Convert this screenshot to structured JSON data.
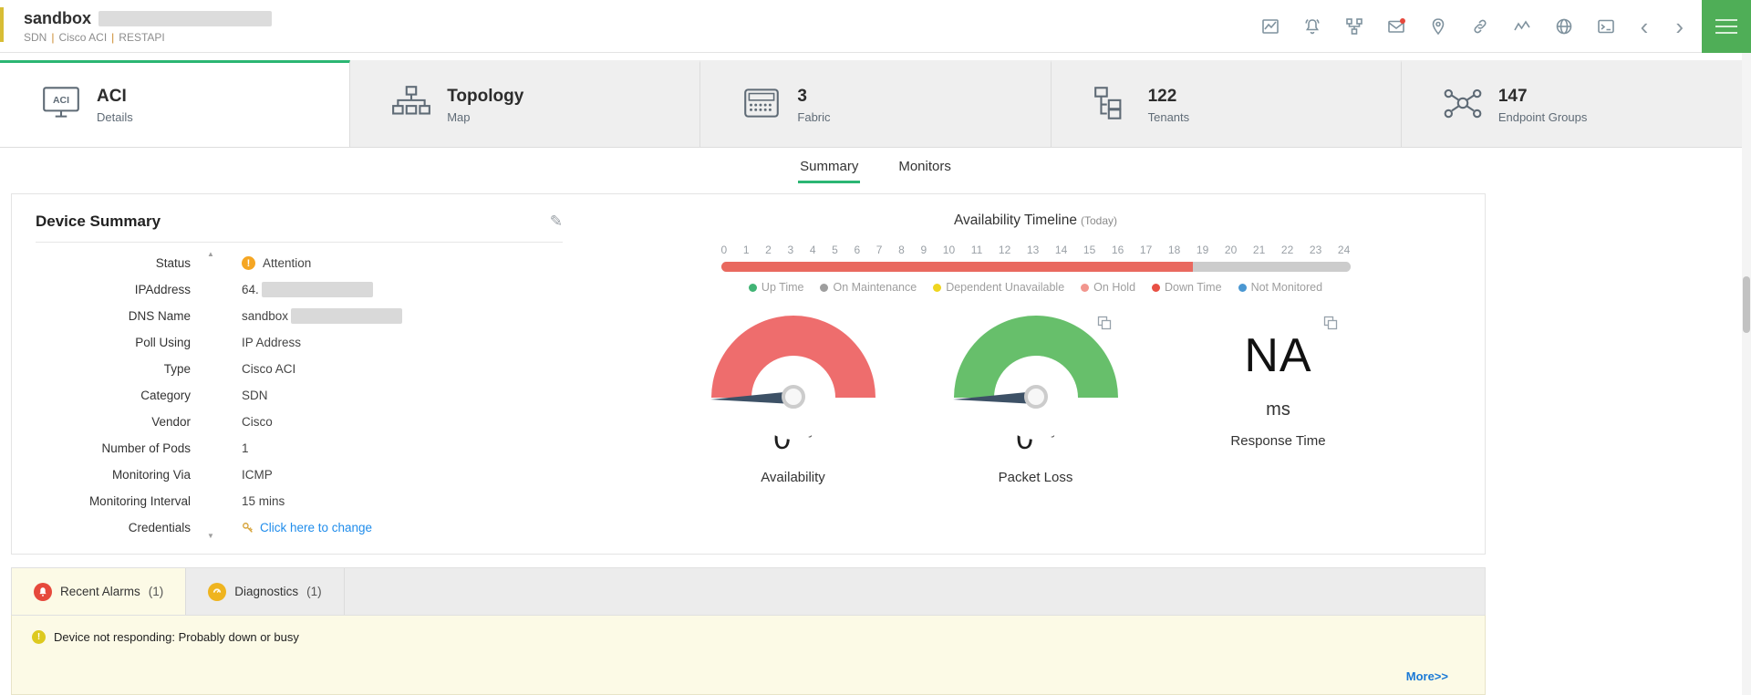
{
  "theme": {
    "accent_green": "#2bb673",
    "status_orange": "#f5a623",
    "link_blue": "#1f8ceb"
  },
  "header": {
    "title": "sandbox",
    "breadcrumb": {
      "parts": [
        "SDN",
        "Cisco ACI",
        "RESTAPI"
      ],
      "separator": "|"
    },
    "icons": [
      "image-chart-icon",
      "alarm-bell-icon",
      "workflow-icon",
      "mail-icon",
      "location-pin-icon",
      "link-icon",
      "sparkline-icon",
      "globe-icon",
      "terminal-icon",
      "chevron-left-icon",
      "chevron-right-icon",
      "menu-icon"
    ]
  },
  "nav_cards": {
    "aci": {
      "title": "ACI",
      "subtitle": "Details"
    },
    "topology": {
      "title": "Topology",
      "subtitle": "Map"
    },
    "fabric": {
      "value": "3",
      "label": "Fabric"
    },
    "tenants": {
      "value": "122",
      "label": "Tenants"
    },
    "endpoint_groups": {
      "value": "147",
      "label": "Endpoint Groups"
    }
  },
  "sub_tabs": {
    "summary": "Summary",
    "monitors": "Monitors"
  },
  "device_summary": {
    "title": "Device Summary",
    "fields": [
      {
        "label": "Status",
        "value": "Attention",
        "kind": "status"
      },
      {
        "label": "IPAddress",
        "value": "64.",
        "kind": "redacted"
      },
      {
        "label": "DNS Name",
        "value": "sandbox",
        "kind": "redacted"
      },
      {
        "label": "Poll Using",
        "value": "IP Address",
        "kind": "text"
      },
      {
        "label": "Type",
        "value": "Cisco ACI",
        "kind": "text"
      },
      {
        "label": "Category",
        "value": "SDN",
        "kind": "text"
      },
      {
        "label": "Vendor",
        "value": "Cisco",
        "kind": "text"
      },
      {
        "label": "Number of Pods",
        "value": "1",
        "kind": "text"
      },
      {
        "label": "Monitoring Via",
        "value": "ICMP",
        "kind": "text"
      },
      {
        "label": "Monitoring Interval",
        "value": "15 mins",
        "kind": "text"
      },
      {
        "label": "Credentials",
        "value": "Click here to change",
        "kind": "link"
      }
    ]
  },
  "availability": {
    "title": "Availability Timeline",
    "subtitle": "(Today)",
    "ticks": [
      "0",
      "1",
      "2",
      "3",
      "4",
      "5",
      "6",
      "7",
      "8",
      "9",
      "10",
      "11",
      "12",
      "13",
      "14",
      "15",
      "16",
      "17",
      "18",
      "19",
      "20",
      "21",
      "22",
      "23",
      "24"
    ],
    "segments": [
      {
        "name": "down-time",
        "color": "#e9695f",
        "percent": 75
      },
      {
        "name": "not-monitored",
        "color": "#cccccc",
        "percent": 25
      }
    ],
    "legend": [
      {
        "label": "Up Time",
        "color": "#41b475"
      },
      {
        "label": "On Maintenance",
        "color": "#9e9e9e"
      },
      {
        "label": "Dependent Unavailable",
        "color": "#efd51f"
      },
      {
        "label": "On Hold",
        "color": "#f2968e"
      },
      {
        "label": "Down Time",
        "color": "#e85044"
      },
      {
        "label": "Not Monitored",
        "color": "#4a97d2"
      }
    ]
  },
  "gauges": {
    "availability": {
      "value": "0",
      "unit": "%",
      "label": "Availability",
      "color": "#ee6d6d"
    },
    "packet_loss": {
      "value": "0",
      "unit": "%",
      "label": "Packet Loss",
      "color": "#67bf6b"
    },
    "response_time": {
      "value": "NA",
      "unit": "ms",
      "label": "Response Time"
    }
  },
  "alarms_section": {
    "tabs": [
      {
        "label": "Recent Alarms",
        "count": "(1)"
      },
      {
        "label": "Diagnostics",
        "count": "(1)"
      }
    ],
    "message": "Device not responding: Probably down or busy",
    "more_link": "More>>"
  },
  "chart_data": [
    {
      "type": "bar",
      "title": "Availability Timeline (Today)",
      "x_range_hours": [
        0,
        24
      ],
      "segments": [
        {
          "label": "Down Time",
          "from_hour": 0,
          "to_hour": 18,
          "color": "#e9695f"
        },
        {
          "label": "Not Monitored",
          "from_hour": 18,
          "to_hour": 24,
          "color": "#cccccc"
        }
      ],
      "legend": [
        "Up Time",
        "On Maintenance",
        "Dependent Unavailable",
        "On Hold",
        "Down Time",
        "Not Monitored"
      ]
    },
    {
      "type": "gauge",
      "label": "Availability",
      "value": 0,
      "unit": "%",
      "range": [
        0,
        100
      ]
    },
    {
      "type": "gauge",
      "label": "Packet Loss",
      "value": 0,
      "unit": "%",
      "range": [
        0,
        100
      ]
    },
    {
      "type": "gauge",
      "label": "Response Time",
      "value": "NA",
      "unit": "ms"
    }
  ]
}
